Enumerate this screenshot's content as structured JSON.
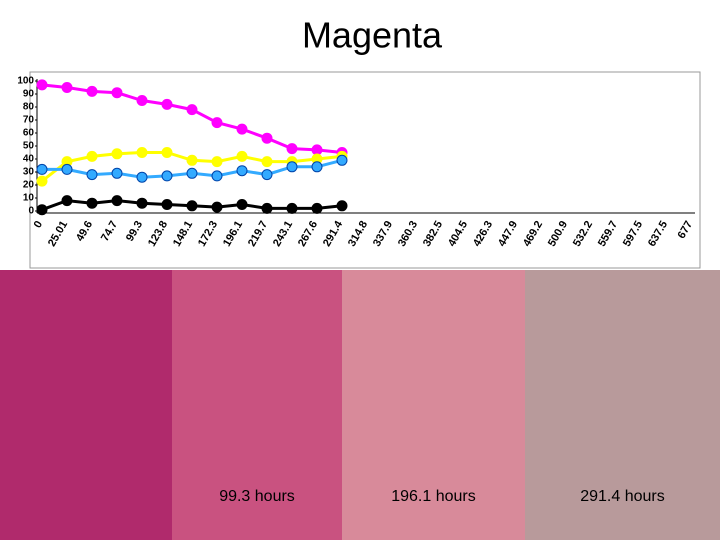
{
  "chart_data": {
    "type": "line",
    "title": "Magenta",
    "categories": [
      "0",
      "25.01",
      "49.6",
      "74.7",
      "99.3",
      "123.8",
      "148.1",
      "172.3",
      "196.1",
      "219.7",
      "243.1",
      "267.6",
      "291.4",
      "314.8",
      "337.9",
      "360.3",
      "382.5",
      "404.5",
      "426.3",
      "447.9",
      "469.2",
      "500.9",
      "532.2",
      "559.7",
      "597.5",
      "637.5",
      "677"
    ],
    "series": [
      {
        "color": "#ff00ff",
        "values": [
          97,
          95,
          92,
          91,
          85,
          82,
          78,
          68,
          63,
          56,
          48,
          47,
          45,
          null,
          null,
          null,
          null,
          null,
          null,
          null,
          null,
          null,
          null,
          null,
          null,
          null,
          null
        ]
      },
      {
        "color": "#ffff00",
        "values": [
          23,
          38,
          42,
          44,
          45,
          45,
          39,
          38,
          42,
          38,
          38,
          40,
          42,
          null,
          null,
          null,
          null,
          null,
          null,
          null,
          null,
          null,
          null,
          null,
          null,
          null,
          null
        ]
      },
      {
        "color": "#33aaff",
        "values": [
          32,
          32,
          28,
          29,
          26,
          27,
          29,
          27,
          31,
          28,
          34,
          34,
          39,
          null,
          null,
          null,
          null,
          null,
          null,
          null,
          null,
          null,
          null,
          null,
          null,
          null,
          null
        ]
      },
      {
        "color": "#000000",
        "values": [
          1,
          8,
          6,
          8,
          6,
          5,
          4,
          3,
          5,
          2,
          2,
          2,
          4,
          null,
          null,
          null,
          null,
          null,
          null,
          null,
          null,
          null,
          null,
          null,
          null,
          null,
          null
        ]
      }
    ],
    "ylim": [
      0,
      100
    ],
    "yticks": [
      0,
      10,
      20,
      30,
      40,
      50,
      60,
      70,
      80,
      90,
      100
    ]
  },
  "photos": [
    {
      "color": "#b02a6c"
    },
    {
      "color": "#c95280",
      "caption": "99.3 hours"
    },
    {
      "color": "#d88a9a",
      "caption": "196.1 hours"
    },
    {
      "color": "#b89a9b",
      "caption": "291.4 hours"
    }
  ]
}
